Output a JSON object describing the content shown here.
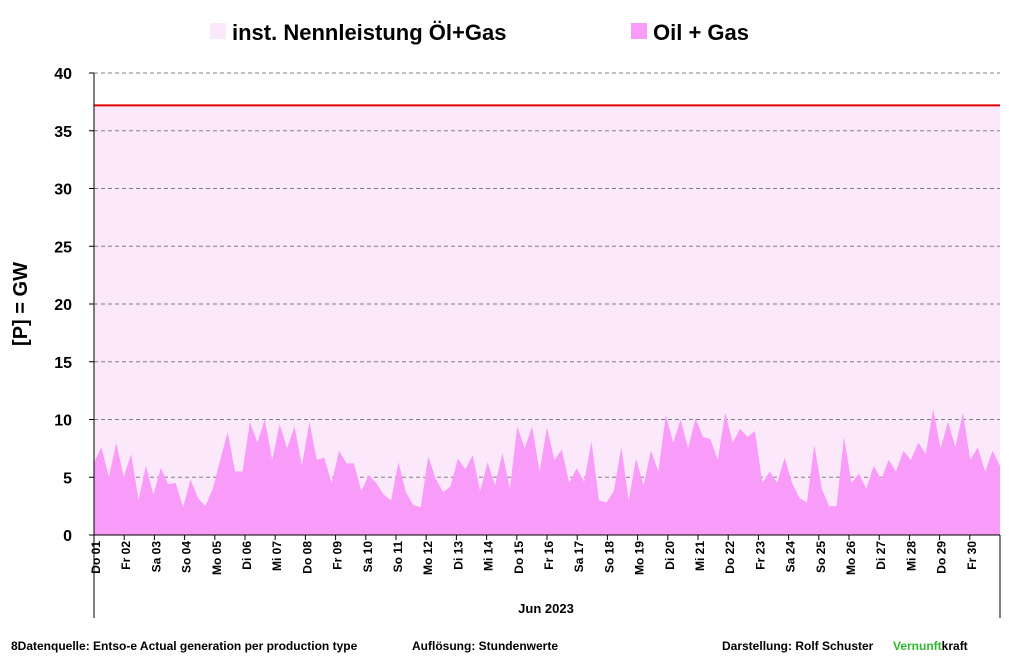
{
  "chart_data": {
    "type": "area",
    "ylabel": "[P]  = GW",
    "xlabel": "Jun 2023",
    "ylim": [
      0,
      40
    ],
    "yticks": [
      0,
      5,
      10,
      15,
      20,
      25,
      30,
      35,
      40
    ],
    "grid": true,
    "legend_position": "top",
    "categories": [
      "Do 01",
      "Fr 02",
      "Sa 03",
      "So 04",
      "Mo 05",
      "Di 06",
      "Mi 07",
      "Do 08",
      "Fr 09",
      "Sa 10",
      "So 11",
      "Mo 12",
      "Di 13",
      "Mi 14",
      "Do 15",
      "Fr 16",
      "Sa 17",
      "So 18",
      "Mo 19",
      "Di 20",
      "Mi 21",
      "Do 22",
      "Fr 23",
      "Sa 24",
      "So 25",
      "Mo 26",
      "Di 27",
      "Mi 28",
      "Do 29",
      "Fr 30"
    ],
    "series": [
      {
        "name": "inst. Nennleistung Öl+Gas",
        "type": "area",
        "color": "#fbe8fb",
        "line_color": "#e00000",
        "value": 37.2
      },
      {
        "name": "Oil + Gas",
        "type": "area",
        "color": "#f99bf9",
        "days": [
          [
            6.3,
            7.6,
            5.0,
            8.0
          ],
          [
            5.0,
            7.0,
            3.0,
            6.0
          ],
          [
            3.5,
            5.8,
            4.4,
            4.5
          ],
          [
            2.4,
            4.8,
            3.2,
            2.5
          ],
          [
            4.0,
            6.5,
            8.9,
            5.5
          ],
          [
            5.5,
            9.8,
            8.0,
            10.0
          ],
          [
            6.5,
            9.6,
            7.5,
            9.4
          ],
          [
            6.0,
            9.8,
            6.5,
            6.7
          ],
          [
            4.5,
            7.3,
            6.2,
            6.2
          ],
          [
            3.8,
            5.2,
            4.5,
            3.5
          ],
          [
            3.0,
            6.3,
            3.7,
            2.6
          ],
          [
            2.4,
            6.8,
            4.9,
            3.7
          ],
          [
            4.2,
            6.6,
            5.7,
            6.9
          ],
          [
            3.8,
            6.3,
            4.3,
            7.1
          ],
          [
            4.0,
            9.4,
            7.5,
            9.4
          ],
          [
            5.5,
            9.3,
            6.5,
            7.4
          ],
          [
            4.5,
            5.8,
            4.6,
            8.1
          ],
          [
            3.0,
            2.8,
            3.8,
            7.6
          ],
          [
            3.0,
            6.6,
            4.3,
            7.3
          ],
          [
            5.5,
            10.4,
            8.0,
            10.0
          ],
          [
            7.5,
            10.1,
            8.5,
            8.3
          ],
          [
            6.5,
            10.6,
            8.0,
            9.2
          ],
          [
            8.5,
            9.0,
            4.5,
            5.5
          ],
          [
            4.5,
            6.7,
            4.5,
            3.2
          ],
          [
            2.8,
            7.8,
            4.0,
            2.5
          ],
          [
            2.5,
            8.5,
            4.5,
            5.3
          ],
          [
            4.0,
            6.0,
            4.8,
            6.5
          ],
          [
            5.5,
            7.3,
            6.5,
            8.0
          ],
          [
            7.0,
            10.9,
            7.5,
            9.8
          ],
          [
            7.6,
            10.6,
            6.5,
            7.6
          ]
        ],
        "tail": [
          5.5,
          7.3,
          6.0
        ]
      }
    ]
  },
  "footer": {
    "source": "8Datenquelle: Entso-e  Actual generation per production type",
    "resolution": "Auflösung: Stundenwerte",
    "author": "Darstellung:  Rolf Schuster",
    "brand_green": "Vernunft",
    "brand_black": "kraft"
  }
}
